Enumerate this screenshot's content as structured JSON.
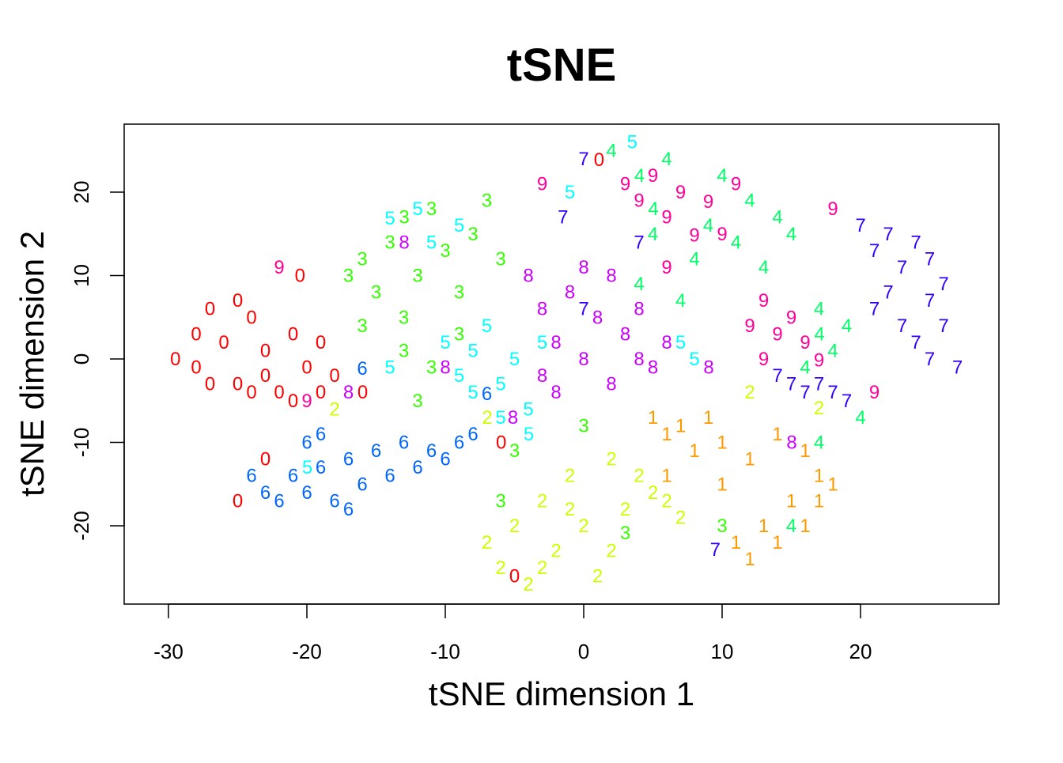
{
  "chart_data": {
    "type": "scatter",
    "title": "tSNE",
    "xlabel": "tSNE dimension 1",
    "ylabel": "tSNE dimension 2",
    "xlim": [
      -32,
      31
    ],
    "ylim": [
      -29,
      28.5
    ],
    "xticks": [
      -30,
      -20,
      -10,
      0,
      10,
      20
    ],
    "yticks": [
      -20,
      -10,
      0,
      10,
      20
    ],
    "grid": false,
    "marker": "digit label text",
    "label_colors": {
      "0": "#FF0000",
      "1": "#FF9900",
      "2": "#CCFF00",
      "3": "#33FF00",
      "4": "#00FF66",
      "5": "#00FFFF",
      "6": "#0066FF",
      "7": "#3300FF",
      "8": "#CC00FF",
      "9": "#FF0099"
    },
    "points": {
      "0": [
        [
          -29.5,
          0
        ],
        [
          -28,
          3
        ],
        [
          -27,
          6
        ],
        [
          -26,
          2
        ],
        [
          -25,
          -3
        ],
        [
          -24,
          5
        ],
        [
          -23,
          1
        ],
        [
          -22,
          -4
        ],
        [
          -21,
          3
        ],
        [
          -20,
          -1
        ],
        [
          -19,
          2
        ],
        [
          -27,
          -3
        ],
        [
          -25,
          7
        ],
        [
          -23,
          -2
        ],
        [
          -21,
          -5
        ],
        [
          -18,
          -2
        ],
        [
          -28,
          -1
        ],
        [
          -24,
          -4
        ],
        [
          -19,
          -4
        ],
        [
          -17,
          -4
        ],
        [
          -20.5,
          10
        ],
        [
          -23,
          -12
        ],
        [
          -25,
          -17
        ],
        [
          -5,
          -8
        ],
        [
          2.5,
          25
        ],
        [
          -5,
          -26
        ]
      ],
      "1": [
        [
          5,
          -7
        ],
        [
          7,
          -8
        ],
        [
          9,
          -7
        ],
        [
          10,
          -10
        ],
        [
          12,
          -12
        ],
        [
          14,
          -9
        ],
        [
          16,
          -11
        ],
        [
          17,
          -14
        ],
        [
          15,
          -17
        ],
        [
          16,
          -20
        ],
        [
          14,
          -22
        ],
        [
          12,
          -24
        ],
        [
          13,
          -20
        ],
        [
          11,
          -22
        ],
        [
          17,
          -17
        ],
        [
          8,
          -11
        ],
        [
          18,
          -15
        ],
        [
          6,
          -9
        ],
        [
          10,
          -15
        ],
        [
          6,
          -14
        ]
      ],
      "2": [
        [
          -7,
          -22
        ],
        [
          -6,
          -25
        ],
        [
          -5,
          -20
        ],
        [
          -4,
          -27
        ],
        [
          -3,
          -17
        ],
        [
          -2,
          -23
        ],
        [
          -1,
          -14
        ],
        [
          0,
          -20
        ],
        [
          1,
          -26
        ],
        [
          2,
          -12
        ],
        [
          3,
          -18
        ],
        [
          4,
          -14
        ],
        [
          5,
          -16
        ],
        [
          6,
          -17
        ],
        [
          -3,
          -25
        ],
        [
          -1,
          -18
        ],
        [
          2,
          -23
        ],
        [
          7,
          -19
        ],
        [
          -8,
          -7
        ],
        [
          -18,
          -6
        ],
        [
          12,
          -4
        ],
        [
          17,
          -5
        ]
      ],
      "3": [
        [
          -16,
          12
        ],
        [
          -15,
          8
        ],
        [
          -14,
          14
        ],
        [
          -13,
          5
        ],
        [
          -12,
          10
        ],
        [
          -11,
          18
        ],
        [
          -10,
          13
        ],
        [
          -9,
          8
        ],
        [
          -8,
          15
        ],
        [
          -7,
          19
        ],
        [
          -13,
          1
        ],
        [
          -11,
          -1
        ],
        [
          -16,
          4
        ],
        [
          -14,
          17
        ],
        [
          -9,
          3
        ],
        [
          -6,
          12
        ],
        [
          -12,
          -5
        ],
        [
          -5,
          -11
        ],
        [
          -6,
          -17
        ],
        [
          10,
          -20
        ],
        [
          3,
          -20
        ],
        [
          0,
          -8
        ],
        [
          -17,
          10
        ]
      ],
      "4": [
        [
          2,
          25
        ],
        [
          3,
          22
        ],
        [
          4,
          18
        ],
        [
          5,
          15
        ],
        [
          6,
          24
        ],
        [
          8,
          12
        ],
        [
          9,
          16
        ],
        [
          10,
          22
        ],
        [
          11,
          14
        ],
        [
          12,
          19
        ],
        [
          13,
          11
        ],
        [
          14,
          17
        ],
        [
          15,
          15
        ],
        [
          16,
          3
        ],
        [
          17,
          6
        ],
        [
          18,
          1
        ],
        [
          19,
          4
        ],
        [
          16,
          -1
        ],
        [
          20,
          -7
        ],
        [
          17,
          -10
        ],
        [
          15,
          -20
        ],
        [
          4,
          9
        ],
        [
          7,
          7
        ]
      ],
      "5": [
        [
          -10,
          2
        ],
        [
          -9,
          -2
        ],
        [
          -8,
          1
        ],
        [
          -7,
          4
        ],
        [
          -6,
          -3
        ],
        [
          -5,
          0
        ],
        [
          -4,
          -6
        ],
        [
          -3,
          2
        ],
        [
          -6,
          -7
        ],
        [
          -8,
          -4
        ],
        [
          -14,
          16
        ],
        [
          -12,
          18
        ],
        [
          -11,
          14
        ],
        [
          -9,
          16
        ],
        [
          3.5,
          26
        ],
        [
          -1,
          20
        ],
        [
          7,
          2
        ],
        [
          8,
          0
        ],
        [
          -14,
          -1
        ],
        [
          -21,
          -13
        ],
        [
          -5,
          -9
        ]
      ],
      "6": [
        [
          -23,
          -16
        ],
        [
          -22,
          -17
        ],
        [
          -21,
          -14
        ],
        [
          -20,
          -16
        ],
        [
          -19,
          -13
        ],
        [
          -18,
          -17
        ],
        [
          -17,
          -12
        ],
        [
          -16,
          -15
        ],
        [
          -15,
          -11
        ],
        [
          -14,
          -14
        ],
        [
          -13,
          -10
        ],
        [
          -12,
          -13
        ],
        [
          -11,
          -11
        ],
        [
          -10,
          -12
        ],
        [
          -9,
          -10
        ],
        [
          -8,
          -9
        ],
        [
          -17,
          -18
        ],
        [
          -20,
          -10
        ],
        [
          -24,
          -14
        ],
        [
          -19,
          -9
        ],
        [
          -7,
          -5
        ],
        [
          -16,
          -2
        ]
      ],
      "7": [
        [
          14,
          -2
        ],
        [
          15,
          -3
        ],
        [
          16,
          -4
        ],
        [
          17,
          -3
        ],
        [
          18,
          -4
        ],
        [
          20,
          16
        ],
        [
          21,
          13
        ],
        [
          22,
          15
        ],
        [
          23,
          11
        ],
        [
          24,
          14
        ],
        [
          25,
          12
        ],
        [
          26,
          9
        ],
        [
          22,
          8
        ],
        [
          23,
          4
        ],
        [
          24,
          2
        ],
        [
          25,
          0
        ],
        [
          26,
          4
        ],
        [
          27,
          -1
        ],
        [
          21,
          6
        ],
        [
          25,
          7
        ],
        [
          19,
          -5
        ],
        [
          9.5,
          -22
        ],
        [
          0,
          24
        ],
        [
          0,
          6
        ],
        [
          -1.5,
          17
        ],
        [
          4,
          14
        ]
      ],
      "8": [
        [
          -4,
          10
        ],
        [
          -3,
          6
        ],
        [
          -2,
          2
        ],
        [
          -1,
          8
        ],
        [
          0,
          0
        ],
        [
          1,
          5
        ],
        [
          2,
          -3
        ],
        [
          3,
          3
        ],
        [
          4,
          6
        ],
        [
          5,
          -1
        ],
        [
          -2,
          -4
        ],
        [
          0,
          11
        ],
        [
          2,
          10
        ],
        [
          -3,
          -2
        ],
        [
          4,
          0
        ],
        [
          6,
          2
        ],
        [
          -17,
          -4
        ],
        [
          -10,
          -1
        ],
        [
          -7,
          -7
        ],
        [
          -14,
          14
        ],
        [
          8,
          -1
        ],
        [
          14,
          -10
        ]
      ],
      "9": [
        [
          3,
          21
        ],
        [
          4,
          19
        ],
        [
          5,
          22
        ],
        [
          6,
          17
        ],
        [
          7,
          20
        ],
        [
          8,
          14
        ],
        [
          9,
          18
        ],
        [
          10,
          15
        ],
        [
          6,
          11
        ],
        [
          13,
          7
        ],
        [
          14,
          3
        ],
        [
          15,
          5
        ],
        [
          16,
          2
        ],
        [
          13,
          0
        ],
        [
          17,
          -1
        ],
        [
          12,
          4
        ],
        [
          -3,
          21
        ],
        [
          11,
          21
        ],
        [
          18,
          18
        ],
        [
          21,
          -4
        ],
        [
          -22,
          11
        ],
        [
          -20,
          -5
        ]
      ]
    }
  }
}
